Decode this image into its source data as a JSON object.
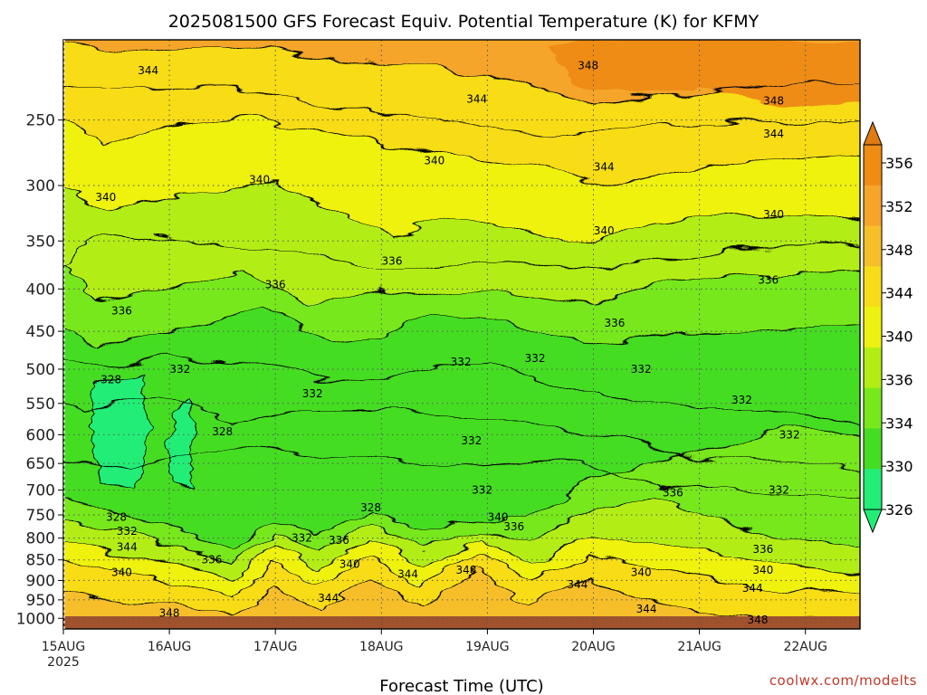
{
  "chart_data": {
    "type": "heatmap",
    "title": "2025081500 GFS Forecast Equiv. Potential Temperature (K) for KFMY",
    "xlabel": "Forecast Time (UTC)",
    "ylabel": "",
    "x_ticks": [
      {
        "day": 0,
        "label": "15AUG",
        "sub": "2025"
      },
      {
        "day": 1,
        "label": "16AUG"
      },
      {
        "day": 2,
        "label": "17AUG"
      },
      {
        "day": 3,
        "label": "18AUG"
      },
      {
        "day": 4,
        "label": "19AUG"
      },
      {
        "day": 5,
        "label": "20AUG"
      },
      {
        "day": 6,
        "label": "21AUG"
      },
      {
        "day": 7,
        "label": "22AUG"
      }
    ],
    "xlim_days": [
      0,
      7.5
    ],
    "y_ticks": [
      250,
      300,
      350,
      400,
      450,
      500,
      550,
      600,
      650,
      700,
      750,
      800,
      850,
      900,
      950,
      1000
    ],
    "ylim_hpa": [
      200,
      1030
    ],
    "y_scale": "log",
    "grid": "dotted",
    "colorbar": {
      "ticks": [
        326,
        330,
        334,
        336,
        340,
        344,
        348,
        352,
        356
      ],
      "colors": [
        "#22ee77",
        "#44dd22",
        "#77e81c",
        "#b2ee14",
        "#eef210",
        "#f7dc18",
        "#f6bf2a",
        "#f4a52a",
        "#ee8c14"
      ],
      "placement": "right"
    },
    "contour_labels": [
      {
        "day": 0.8,
        "p": 218,
        "v": "344"
      },
      {
        "day": 4.95,
        "p": 215,
        "v": "348"
      },
      {
        "day": 3.9,
        "p": 236,
        "v": "344"
      },
      {
        "day": 6.7,
        "p": 237,
        "v": "348"
      },
      {
        "day": 6.7,
        "p": 260,
        "v": "344"
      },
      {
        "day": 3.5,
        "p": 280,
        "v": "340"
      },
      {
        "day": 5.1,
        "p": 285,
        "v": "344"
      },
      {
        "day": 1.85,
        "p": 295,
        "v": "340"
      },
      {
        "day": 0.4,
        "p": 310,
        "v": "340"
      },
      {
        "day": 6.7,
        "p": 325,
        "v": "340"
      },
      {
        "day": 5.1,
        "p": 340,
        "v": "340"
      },
      {
        "day": 3.1,
        "p": 370,
        "v": "336"
      },
      {
        "day": 6.65,
        "p": 390,
        "v": "336"
      },
      {
        "day": 2.0,
        "p": 395,
        "v": "336"
      },
      {
        "day": 0.55,
        "p": 425,
        "v": "336"
      },
      {
        "day": 5.2,
        "p": 440,
        "v": "336"
      },
      {
        "day": 3.75,
        "p": 490,
        "v": "332"
      },
      {
        "day": 4.45,
        "p": 485,
        "v": "332"
      },
      {
        "day": 5.45,
        "p": 500,
        "v": "332"
      },
      {
        "day": 1.1,
        "p": 500,
        "v": "332"
      },
      {
        "day": 0.45,
        "p": 515,
        "v": "328"
      },
      {
        "day": 2.35,
        "p": 535,
        "v": "332"
      },
      {
        "day": 6.4,
        "p": 545,
        "v": "332"
      },
      {
        "day": 1.5,
        "p": 595,
        "v": "328"
      },
      {
        "day": 3.85,
        "p": 610,
        "v": "332"
      },
      {
        "day": 6.85,
        "p": 600,
        "v": "332"
      },
      {
        "day": 3.95,
        "p": 700,
        "v": "332"
      },
      {
        "day": 5.75,
        "p": 705,
        "v": "336"
      },
      {
        "day": 6.75,
        "p": 700,
        "v": "332"
      },
      {
        "day": 0.5,
        "p": 755,
        "v": "328"
      },
      {
        "day": 2.9,
        "p": 735,
        "v": "328"
      },
      {
        "day": 4.1,
        "p": 755,
        "v": "340"
      },
      {
        "day": 4.25,
        "p": 775,
        "v": "336"
      },
      {
        "day": 0.6,
        "p": 785,
        "v": "332"
      },
      {
        "day": 2.25,
        "p": 800,
        "v": "332"
      },
      {
        "day": 2.6,
        "p": 805,
        "v": "336"
      },
      {
        "day": 0.6,
        "p": 820,
        "v": "344"
      },
      {
        "day": 1.4,
        "p": 850,
        "v": "336"
      },
      {
        "day": 6.6,
        "p": 825,
        "v": "336"
      },
      {
        "day": 2.7,
        "p": 860,
        "v": "340"
      },
      {
        "day": 0.55,
        "p": 880,
        "v": "340"
      },
      {
        "day": 3.25,
        "p": 885,
        "v": "344"
      },
      {
        "day": 3.8,
        "p": 875,
        "v": "348"
      },
      {
        "day": 5.45,
        "p": 880,
        "v": "340"
      },
      {
        "day": 6.6,
        "p": 875,
        "v": "340"
      },
      {
        "day": 4.85,
        "p": 910,
        "v": "344"
      },
      {
        "day": 6.5,
        "p": 920,
        "v": "344"
      },
      {
        "day": 2.5,
        "p": 945,
        "v": "344"
      },
      {
        "day": 5.5,
        "p": 975,
        "v": "344"
      },
      {
        "day": 1.0,
        "p": 985,
        "v": "348"
      },
      {
        "day": 6.55,
        "p": 1005,
        "v": "348"
      }
    ]
  },
  "footer": {
    "credit": "coolwx.com/modelts"
  }
}
